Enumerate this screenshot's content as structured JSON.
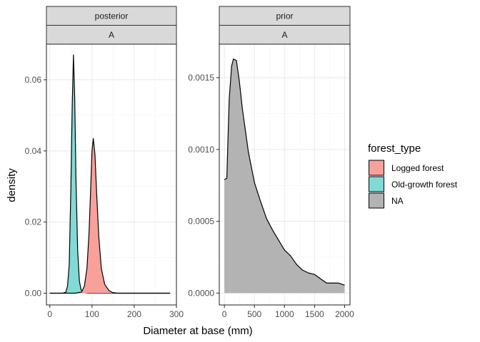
{
  "chart_data": {
    "type": "area",
    "xlabel": "Diameter at base (mm)",
    "ylabel": "density",
    "legend": {
      "title": "forest_type",
      "placement": "right",
      "entries": [
        {
          "name": "Logged forest",
          "color": "#F8A19A"
        },
        {
          "name": "Old-growth forest",
          "color": "#82DAD6"
        },
        {
          "name": "NA",
          "color": "#B3B3B3"
        }
      ]
    },
    "grid": true,
    "panels": [
      {
        "strip_top": "posterior",
        "strip_bottom": "A",
        "xlim": [
          -8,
          300
        ],
        "ylim": [
          -0.0033,
          0.07
        ],
        "xticks": [
          0,
          100,
          200,
          300
        ],
        "yticks": [
          0.0,
          0.02,
          0.04,
          0.06
        ],
        "ytick_labels": [
          "0.00",
          "0.02",
          "0.04",
          "0.06"
        ],
        "series": [
          {
            "name": "Old-growth forest",
            "x": [
              0,
              30,
              38,
              42,
              46,
              50,
              53,
              56,
              59,
              62,
              66,
              70,
              74,
              80,
              90,
              285
            ],
            "y": [
              0,
              0,
              0.0003,
              0.002,
              0.008,
              0.03,
              0.052,
              0.067,
              0.055,
              0.032,
              0.012,
              0.0035,
              0.001,
              0.0002,
              0,
              0
            ]
          },
          {
            "name": "Logged forest",
            "x": [
              0,
              60,
              75,
              82,
              88,
              93,
              97,
              100,
              103,
              107,
              111,
              116,
              122,
              130,
              140,
              148,
              160,
              285
            ],
            "y": [
              0,
              0,
              0.0003,
              0.002,
              0.007,
              0.017,
              0.03,
              0.04,
              0.0435,
              0.039,
              0.028,
              0.016,
              0.007,
              0.0025,
              0.0008,
              0.0002,
              0,
              0
            ]
          }
        ]
      },
      {
        "strip_top": "prior",
        "strip_bottom": "A",
        "xlim": [
          -85,
          2090
        ],
        "ylim": [
          -8.25e-05,
          0.001733
        ],
        "xticks": [
          0,
          500,
          1000,
          1500,
          2000
        ],
        "yticks": [
          0.0,
          0.0005,
          0.001,
          0.0015
        ],
        "ytick_labels": [
          "0.0000",
          "0.0005",
          "0.0010",
          "0.0015"
        ],
        "series": [
          {
            "name": "NA",
            "x": [
              0,
              40,
              80,
              120,
              150,
              200,
              250,
              300,
              400,
              500,
              600,
              700,
              800,
              900,
              1000,
              1100,
              1200,
              1300,
              1400,
              1500,
              1600,
              1700,
              1800,
              1900,
              2000
            ],
            "y": [
              0.00079,
              0.0008,
              0.00135,
              0.00158,
              0.00163,
              0.00162,
              0.00147,
              0.00128,
              0.00098,
              0.00077,
              0.00064,
              0.00052,
              0.00044,
              0.00037,
              0.0003,
              0.00026,
              0.0002,
              0.00016,
              0.00014,
              0.00013,
              0.0001,
              7e-05,
              7e-05,
              7e-05,
              5.5e-05
            ]
          }
        ]
      }
    ]
  }
}
